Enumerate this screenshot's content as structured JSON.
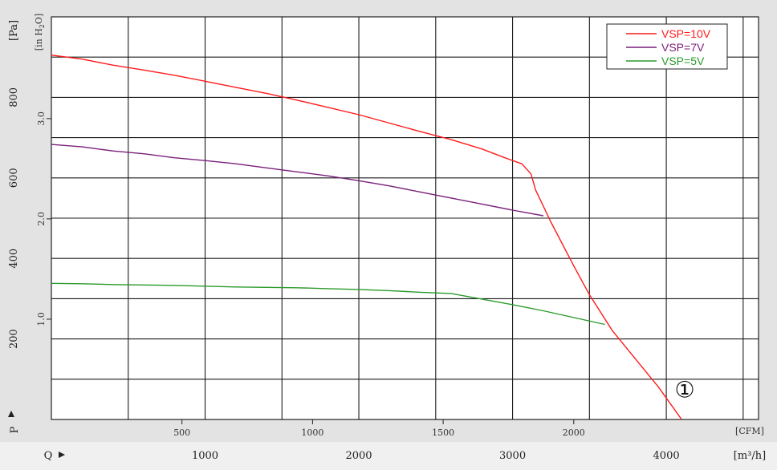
{
  "chart_data": {
    "type": "line",
    "y_axis_pa": {
      "label": "[Pa]",
      "name": "P",
      "ticks": [
        "200",
        "400",
        "600",
        "800"
      ],
      "tick_values": [
        200,
        400,
        600,
        800
      ],
      "ylim": [
        0,
        1000
      ]
    },
    "y_axis_inh2o": {
      "label": "[in H2O]",
      "label_main": "[in H",
      "label_sub": "2",
      "label_end": "O]",
      "ticks": [
        "1.0",
        "2.0",
        "3.0"
      ],
      "tick_values": [
        1.0,
        2.0,
        3.0
      ]
    },
    "x_axis_cfm": {
      "label": "[CFM]",
      "ticks": [
        "500",
        "1000",
        "1500",
        "2000"
      ],
      "tick_values": [
        500,
        1000,
        1500,
        2000
      ]
    },
    "x_axis_m3h": {
      "label": "[m³/h]",
      "name": "Q",
      "ticks": [
        "1000",
        "2000",
        "3000",
        "4000"
      ],
      "tick_values": [
        1000,
        2000,
        3000,
        4000
      ],
      "xlim": [
        0,
        4600
      ]
    },
    "grid": true,
    "legend_position": "top-right",
    "series": [
      {
        "name": "VSP=10V",
        "color": "#ff1a1a",
        "points": [
          [
            0,
            905
          ],
          [
            200,
            895
          ],
          [
            400,
            880
          ],
          [
            600,
            868
          ],
          [
            800,
            855
          ],
          [
            1000,
            840
          ],
          [
            1200,
            825
          ],
          [
            1400,
            810
          ],
          [
            1600,
            793
          ],
          [
            1800,
            775
          ],
          [
            2000,
            757
          ],
          [
            2200,
            736
          ],
          [
            2400,
            715
          ],
          [
            2600,
            695
          ],
          [
            2800,
            672
          ],
          [
            2950,
            650
          ],
          [
            3060,
            635
          ],
          [
            3120,
            610
          ],
          [
            3150,
            570
          ],
          [
            3250,
            490
          ],
          [
            3400,
            380
          ],
          [
            3500,
            310
          ],
          [
            3650,
            220
          ],
          [
            3800,
            150
          ],
          [
            3950,
            80
          ],
          [
            4100,
            0
          ]
        ]
      },
      {
        "name": "VSP=7V",
        "color": "#7a1f7a",
        "points": [
          [
            0,
            683
          ],
          [
            200,
            677
          ],
          [
            400,
            667
          ],
          [
            600,
            660
          ],
          [
            800,
            650
          ],
          [
            1000,
            643
          ],
          [
            1200,
            635
          ],
          [
            1400,
            625
          ],
          [
            1600,
            615
          ],
          [
            1800,
            605
          ],
          [
            2000,
            593
          ],
          [
            2200,
            580
          ],
          [
            2400,
            565
          ],
          [
            2600,
            550
          ],
          [
            2800,
            535
          ],
          [
            3000,
            520
          ],
          [
            3200,
            506
          ]
        ]
      },
      {
        "name": "VSP=5V",
        "color": "#2a9a2a",
        "points": [
          [
            0,
            338
          ],
          [
            200,
            337
          ],
          [
            400,
            335
          ],
          [
            600,
            334
          ],
          [
            800,
            333
          ],
          [
            1000,
            331
          ],
          [
            1200,
            329
          ],
          [
            1400,
            328
          ],
          [
            1600,
            327
          ],
          [
            1800,
            325
          ],
          [
            2000,
            323
          ],
          [
            2200,
            320
          ],
          [
            2400,
            316
          ],
          [
            2600,
            313
          ],
          [
            2800,
            299
          ],
          [
            3000,
            285
          ],
          [
            3200,
            270
          ],
          [
            3400,
            253
          ],
          [
            3600,
            236
          ]
        ]
      }
    ],
    "annotations": [
      {
        "text": "①",
        "x": 4120,
        "y": 55
      }
    ]
  }
}
